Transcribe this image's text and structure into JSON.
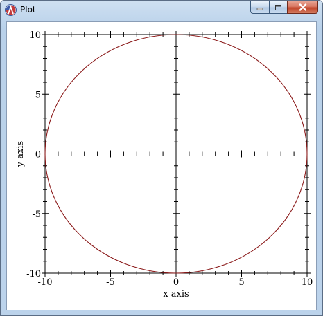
{
  "window": {
    "title": "Plot"
  },
  "chart_data": {
    "type": "line",
    "title": "",
    "xlabel": "x axis",
    "ylabel": "y axis",
    "xlim": [
      -10,
      10
    ],
    "ylim": [
      -10,
      10
    ],
    "x_ticks": [
      "-10",
      "-5",
      "0",
      "5",
      "10"
    ],
    "y_ticks": [
      "10",
      "5",
      "0",
      "-5",
      "-10"
    ],
    "series": [
      {
        "shape": "circle",
        "center": [
          0,
          0
        ],
        "radius": 10,
        "color": "#8b1a1a"
      }
    ],
    "grid": false
  }
}
